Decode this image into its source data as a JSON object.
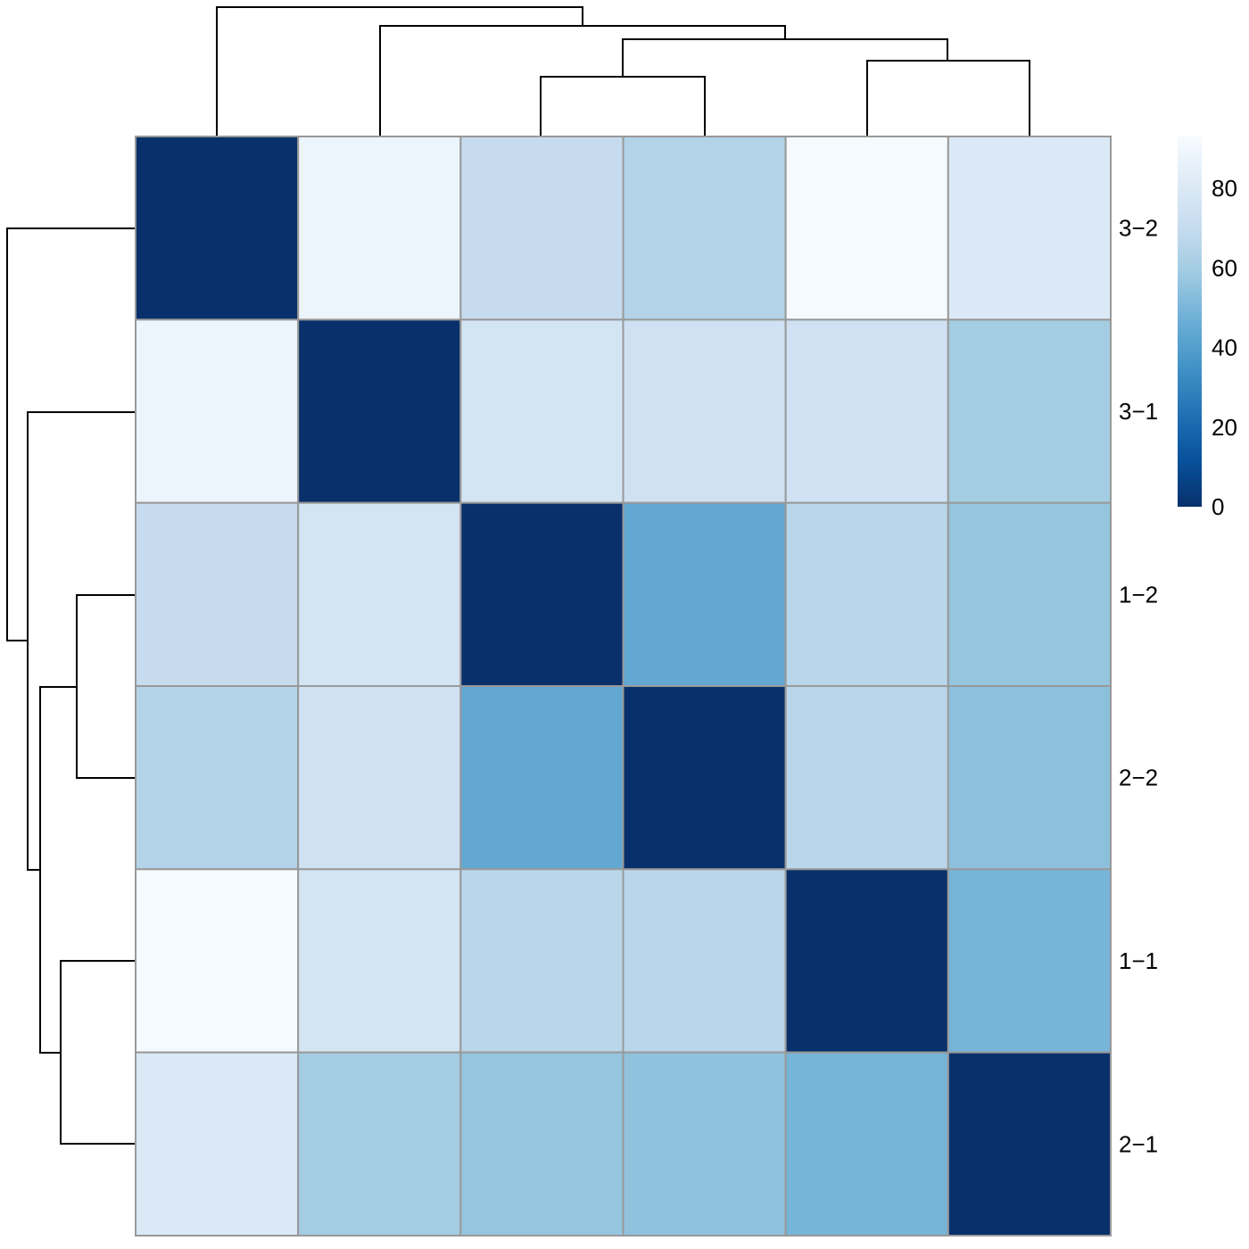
{
  "chart_data": {
    "type": "heatmap",
    "title": "",
    "row_labels": [
      "3−2",
      "3−1",
      "1−2",
      "2−2",
      "1−1",
      "2−1"
    ],
    "values": [
      [
        0,
        88,
        70,
        64,
        92,
        80
      ],
      [
        88,
        0,
        76,
        74,
        74,
        60
      ],
      [
        70,
        76,
        0,
        44,
        66,
        56
      ],
      [
        64,
        74,
        44,
        0,
        66,
        54
      ],
      [
        92,
        76,
        66,
        66,
        0,
        49
      ],
      [
        80,
        60,
        56,
        55,
        49,
        0
      ]
    ],
    "colorbar": {
      "min": 0,
      "max": 93,
      "ticks": [
        0,
        20,
        40,
        60,
        80
      ],
      "tick_labels": [
        "0",
        "20",
        "40",
        "60",
        "80"
      ],
      "colors": [
        "#08306b",
        "#08519c",
        "#2171b5",
        "#4292c6",
        "#6baed6",
        "#9ecae1",
        "#c6dbef",
        "#deebf7",
        "#f7fbff"
      ]
    },
    "col_dendrogram": true,
    "row_dendrogram": true
  }
}
